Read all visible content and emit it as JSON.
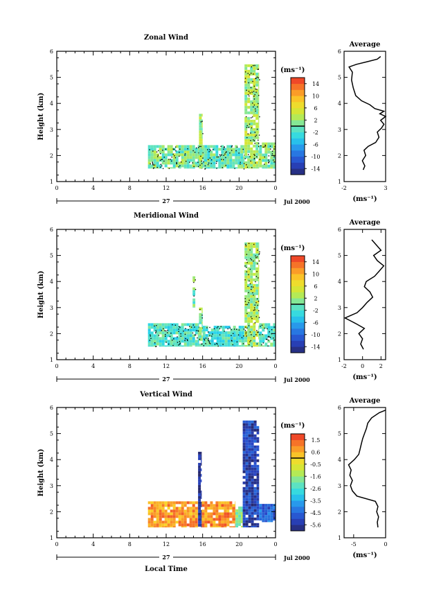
{
  "xlabel": "Local Time",
  "date_label": "Jul 2000",
  "day_label": "27",
  "colorbar_unit_label": "(ms⁻¹)",
  "avg_unit_label": "(ms⁻¹)",
  "chart_data": [
    {
      "type": "heatmap",
      "title": "Zonal Wind",
      "ylabel": "Height (km)",
      "x_ticks": [
        "0",
        "4",
        "8",
        "12",
        "16",
        "20",
        "0"
      ],
      "x_range_hours": [
        0,
        24
      ],
      "y_ticks": [
        "1",
        "2",
        "3",
        "4",
        "5",
        "6"
      ],
      "ylim": [
        1,
        6
      ],
      "colorbar": {
        "ticks": [
          "14",
          "10",
          "6",
          "2",
          "-2",
          "-6",
          "-10",
          "-14"
        ],
        "range": [
          -16,
          16
        ]
      },
      "data_regions": [
        {
          "x": [
            10.0,
            16.2
          ],
          "y": [
            1.5,
            2.4
          ],
          "mean": 0.5
        },
        {
          "x": [
            15.6,
            16.0
          ],
          "y": [
            1.5,
            3.6
          ],
          "mean": 2.0
        },
        {
          "x": [
            16.2,
            20.6
          ],
          "y": [
            1.5,
            2.4
          ],
          "mean": -0.5
        },
        {
          "x": [
            20.6,
            22.2
          ],
          "y": [
            1.5,
            5.5
          ],
          "mean": 2.5
        },
        {
          "x": [
            22.2,
            24.0
          ],
          "y": [
            1.5,
            2.5
          ],
          "mean": 1.0
        }
      ],
      "average_profile": {
        "title": "Average",
        "x_ticks": [
          "-2",
          "3"
        ],
        "xlim": [
          -2,
          3
        ],
        "height": [
          1.45,
          1.6,
          1.8,
          2.0,
          2.2,
          2.35,
          2.5,
          2.7,
          2.9,
          3.05,
          3.2,
          3.35,
          3.5,
          3.6,
          3.7,
          3.8,
          3.95,
          4.1,
          4.3,
          4.6,
          4.9,
          5.2,
          5.4,
          5.5,
          5.6,
          5.7,
          5.8
        ],
        "value": [
          0.3,
          0.5,
          0.2,
          0.6,
          0.4,
          0.9,
          1.8,
          2.2,
          2.0,
          2.5,
          2.8,
          2.4,
          3.0,
          2.3,
          2.8,
          1.7,
          1.1,
          0.1,
          -0.6,
          -0.9,
          -1.1,
          -1.0,
          -1.4,
          -0.5,
          0.8,
          2.0,
          2.4
        ]
      }
    },
    {
      "type": "heatmap",
      "title": "Meridional Wind",
      "ylabel": "Height (km)",
      "x_ticks": [
        "0",
        "4",
        "8",
        "12",
        "16",
        "20",
        "0"
      ],
      "x_range_hours": [
        0,
        24
      ],
      "y_ticks": [
        "1",
        "2",
        "3",
        "4",
        "5",
        "6"
      ],
      "ylim": [
        1,
        6
      ],
      "colorbar": {
        "ticks": [
          "14",
          "10",
          "6",
          "2",
          "-2",
          "-6",
          "-10",
          "-14"
        ],
        "range": [
          -16,
          16
        ]
      },
      "data_regions": [
        {
          "x": [
            10.0,
            15.6
          ],
          "y": [
            1.5,
            2.4
          ],
          "mean": -1.5
        },
        {
          "x": [
            14.9,
            15.2
          ],
          "y": [
            3.0,
            4.2
          ],
          "mean": 0.5
        },
        {
          "x": [
            15.6,
            16.0
          ],
          "y": [
            1.5,
            3.0
          ],
          "mean": 1.0
        },
        {
          "x": [
            16.0,
            20.6
          ],
          "y": [
            1.5,
            2.3
          ],
          "mean": -2.0
        },
        {
          "x": [
            20.6,
            22.2
          ],
          "y": [
            1.5,
            5.5
          ],
          "mean": 2.5
        },
        {
          "x": [
            22.2,
            24.0
          ],
          "y": [
            1.5,
            2.4
          ],
          "mean": -1.0
        }
      ],
      "average_profile": {
        "title": "Average",
        "x_ticks": [
          "-2",
          "0",
          "2"
        ],
        "xlim": [
          -2,
          2.5
        ],
        "height": [
          1.4,
          1.6,
          1.8,
          2.0,
          2.2,
          2.4,
          2.6,
          2.8,
          3.0,
          3.2,
          3.4,
          3.6,
          3.8,
          4.0,
          4.2,
          4.4,
          4.6,
          4.8,
          5.0,
          5.2,
          5.4,
          5.6
        ],
        "value": [
          0.1,
          -0.2,
          0.0,
          -0.4,
          0.2,
          -0.8,
          -1.9,
          -0.6,
          0.0,
          0.5,
          1.1,
          0.8,
          0.2,
          0.4,
          1.3,
          1.8,
          2.3,
          1.6,
          1.2,
          2.0,
          1.5,
          1.0
        ]
      }
    },
    {
      "type": "heatmap",
      "title": "Vertical Wind",
      "ylabel": "Height (km)",
      "x_ticks": [
        "0",
        "4",
        "8",
        "12",
        "16",
        "20",
        "0"
      ],
      "x_range_hours": [
        0,
        24
      ],
      "y_ticks": [
        "1",
        "2",
        "3",
        "4",
        "5",
        "6"
      ],
      "ylim": [
        1,
        6
      ],
      "colorbar": {
        "ticks": [
          "1.5",
          "0.6",
          "-0.5",
          "-1.6",
          "-2.6",
          "-3.5",
          "-4.5",
          "-5.6"
        ],
        "range": [
          -6.0,
          2.0
        ]
      },
      "data_regions": [
        {
          "x": [
            10.0,
            15.5
          ],
          "y": [
            1.4,
            2.4
          ],
          "mean": 0.8
        },
        {
          "x": [
            15.5,
            15.9
          ],
          "y": [
            1.4,
            4.3
          ],
          "mean": -5.7
        },
        {
          "x": [
            15.9,
            19.6
          ],
          "y": [
            1.4,
            2.4
          ],
          "mean": 0.9
        },
        {
          "x": [
            19.6,
            20.4
          ],
          "y": [
            1.4,
            2.2
          ],
          "mean": -1.8
        },
        {
          "x": [
            20.4,
            22.2
          ],
          "y": [
            1.4,
            5.5
          ],
          "mean": -5.2
        },
        {
          "x": [
            22.2,
            24.0
          ],
          "y": [
            1.6,
            2.3
          ],
          "mean": -4.5
        }
      ],
      "average_profile": {
        "title": "Average",
        "x_ticks": [
          "-5",
          "0"
        ],
        "xlim": [
          -6.5,
          0
        ],
        "height": [
          1.4,
          1.6,
          1.8,
          2.0,
          2.2,
          2.4,
          2.6,
          2.8,
          3.0,
          3.2,
          3.4,
          3.6,
          3.8,
          4.0,
          4.2,
          4.4,
          4.6,
          4.8,
          5.0,
          5.2,
          5.4,
          5.6,
          5.8,
          5.9
        ],
        "value": [
          -1.2,
          -1.3,
          -1.1,
          -1.4,
          -1.2,
          -1.6,
          -4.5,
          -5.2,
          -5.5,
          -5.2,
          -5.6,
          -5.4,
          -5.8,
          -4.9,
          -4.2,
          -4.0,
          -3.8,
          -3.6,
          -3.3,
          -3.0,
          -2.8,
          -2.2,
          -1.0,
          0.0
        ]
      }
    }
  ]
}
